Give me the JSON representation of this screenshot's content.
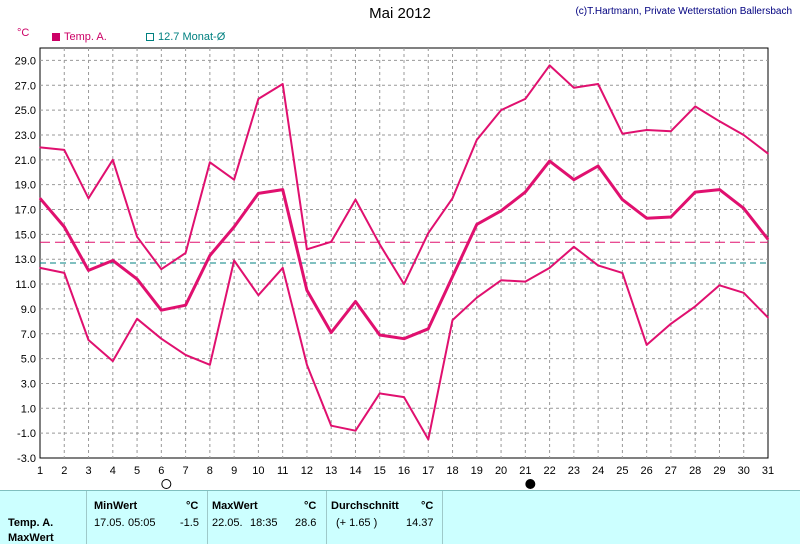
{
  "header": {
    "title": "Mai 2012",
    "copyright": "(c)T.Hartmann, Private Wetterstation Ballersbach"
  },
  "unit_label": "°C",
  "legend": {
    "temp_label": "Temp. A.",
    "avg_label": "12.7 Monat-Ø"
  },
  "colors": {
    "temp": "#e0106f",
    "month_avg": "#008080",
    "reference": "#e0106f",
    "grid": "#999999"
  },
  "chart_data": {
    "type": "line",
    "title": "Mai 2012",
    "ylabel": "°C",
    "x": [
      1,
      2,
      3,
      4,
      5,
      6,
      7,
      8,
      9,
      10,
      11,
      12,
      13,
      14,
      15,
      16,
      17,
      18,
      19,
      20,
      21,
      22,
      23,
      24,
      25,
      26,
      27,
      28,
      29,
      30,
      31
    ],
    "x_tick_labels": [
      "1",
      "2",
      "3",
      "4",
      "5",
      "6",
      "7",
      "8",
      "9",
      "10",
      "11",
      "12",
      "13",
      "14",
      "15",
      "16",
      "17",
      "18",
      "19",
      "20",
      "21",
      "22",
      "23",
      "24",
      "25",
      "26",
      "27",
      "28",
      "29",
      "30",
      "31"
    ],
    "y_tick_labels": [
      "29.0",
      "27.0",
      "25.0",
      "23.0",
      "21.0",
      "19.0",
      "17.0",
      "15.0",
      "13.0",
      "11.0",
      "9.0",
      "7.0",
      "5.0",
      "3.0",
      "1.0",
      "-1.0",
      "-3.0"
    ],
    "ylim": [
      -3,
      30
    ],
    "grid": true,
    "series": [
      {
        "role": "max",
        "values": [
          22.0,
          21.8,
          17.9,
          21.0,
          14.8,
          12.2,
          13.5,
          20.8,
          19.4,
          25.9,
          27.1,
          13.8,
          14.4,
          17.8,
          14.2,
          11.0,
          15.1,
          17.9,
          22.6,
          25.0,
          25.9,
          28.6,
          26.8,
          27.1,
          23.1,
          23.4,
          23.3,
          25.3,
          24.1,
          23.0,
          21.5
        ]
      },
      {
        "name": "Temp. A.",
        "role": "mean",
        "values": [
          17.9,
          15.6,
          12.1,
          12.9,
          11.4,
          8.9,
          9.3,
          13.3,
          15.6,
          18.3,
          18.6,
          10.5,
          7.1,
          9.6,
          6.9,
          6.6,
          7.4,
          11.6,
          15.8,
          16.9,
          18.4,
          20.9,
          19.4,
          20.5,
          17.8,
          16.3,
          16.4,
          18.4,
          18.6,
          17.1,
          14.6
        ]
      },
      {
        "role": "min",
        "values": [
          12.3,
          11.9,
          6.5,
          4.8,
          8.2,
          6.6,
          5.3,
          4.5,
          12.9,
          10.1,
          12.3,
          4.5,
          -0.4,
          -0.8,
          2.2,
          1.9,
          -1.5,
          8.1,
          9.9,
          11.3,
          11.2,
          12.3,
          14.0,
          12.5,
          11.9,
          6.1,
          7.8,
          9.2,
          10.9,
          10.3,
          8.3
        ]
      }
    ],
    "reference_lines": [
      {
        "name": "12.7 Monat-Ø",
        "value": 12.7,
        "color": "#008080"
      },
      {
        "value": 14.37,
        "color": "#e0106f"
      }
    ],
    "moon_markers": [
      {
        "day": 6,
        "phase": "new"
      },
      {
        "day": 21,
        "phase": "full"
      }
    ]
  },
  "summary_table": {
    "row_label_1": "Temp. A.",
    "row_label_2": "MaxWert",
    "min_header": "MinWert",
    "unit": "°C",
    "min_date": "17.05.",
    "min_time": "05:05",
    "min_value": "-1.5",
    "max_header": "MaxWert",
    "max_date": "22.05.",
    "max_time": "18:35",
    "max_value": "28.6",
    "avg_header": "Durchschnitt",
    "avg_delta": "(+ 1.65 )",
    "avg_value": "14.37"
  }
}
